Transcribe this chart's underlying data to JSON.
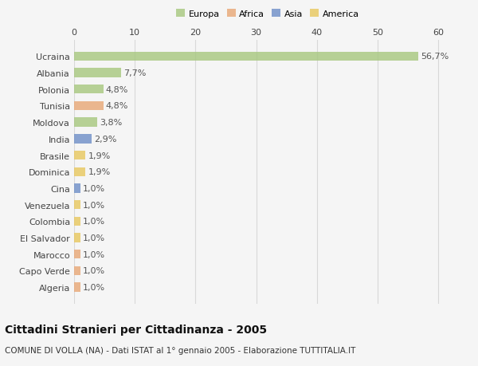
{
  "categories": [
    "Algeria",
    "Capo Verde",
    "Marocco",
    "El Salvador",
    "Colombia",
    "Venezuela",
    "Cina",
    "Dominica",
    "Brasile",
    "India",
    "Moldova",
    "Tunisia",
    "Polonia",
    "Albania",
    "Ucraina"
  ],
  "values": [
    1.0,
    1.0,
    1.0,
    1.0,
    1.0,
    1.0,
    1.0,
    1.9,
    1.9,
    2.9,
    3.8,
    4.8,
    4.8,
    7.7,
    56.7
  ],
  "labels": [
    "1,0%",
    "1,0%",
    "1,0%",
    "1,0%",
    "1,0%",
    "1,0%",
    "1,0%",
    "1,9%",
    "1,9%",
    "2,9%",
    "3,8%",
    "4,8%",
    "4,8%",
    "7,7%",
    "56,7%"
  ],
  "continent": [
    "Africa",
    "Africa",
    "Africa",
    "America",
    "America",
    "America",
    "Asia",
    "America",
    "America",
    "Asia",
    "Europa",
    "Africa",
    "Europa",
    "Europa",
    "Europa"
  ],
  "colors": {
    "Europa": "#a8c880",
    "Africa": "#e8a878",
    "Asia": "#7090c8",
    "America": "#e8c860"
  },
  "legend_labels": [
    "Europa",
    "Africa",
    "Asia",
    "America"
  ],
  "legend_colors": [
    "#a8c880",
    "#e8a878",
    "#7090c8",
    "#e8c860"
  ],
  "xlim": [
    0,
    63
  ],
  "xticks": [
    0,
    10,
    20,
    30,
    40,
    50,
    60
  ],
  "title": "Cittadini Stranieri per Cittadinanza - 2005",
  "subtitle": "COMUNE DI VOLLA (NA) - Dati ISTAT al 1° gennaio 2005 - Elaborazione TUTTITALIA.IT",
  "background_color": "#f5f5f5",
  "grid_color": "#d8d8d8",
  "bar_height": 0.55,
  "label_fontsize": 8,
  "tick_fontsize": 8,
  "title_fontsize": 10,
  "subtitle_fontsize": 7.5
}
